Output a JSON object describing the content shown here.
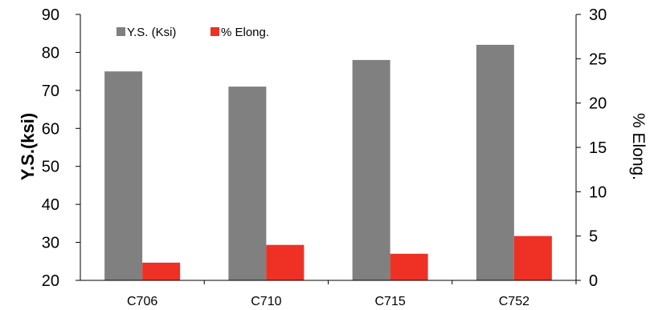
{
  "chart_data": {
    "type": "bar",
    "categories": [
      "C706",
      "C710",
      "C715",
      "C752"
    ],
    "series": [
      {
        "name": "Y.S. (Ksi)",
        "axis": "left",
        "color": "#808080",
        "values": [
          75,
          71,
          78,
          82
        ]
      },
      {
        "name": "% Elong.",
        "axis": "right",
        "color": "#ee3124",
        "values": [
          2,
          4,
          3,
          5
        ]
      }
    ],
    "ylabel": "Y.S.(ksi)",
    "y2label": "% Elong.",
    "ylim": [
      20,
      90
    ],
    "y2lim": [
      0,
      30
    ],
    "yticks": [
      20,
      30,
      40,
      50,
      60,
      70,
      80,
      90
    ],
    "y2ticks": [
      0,
      5,
      10,
      15,
      20,
      25,
      30
    ],
    "grid": false,
    "legend": "top-left"
  }
}
